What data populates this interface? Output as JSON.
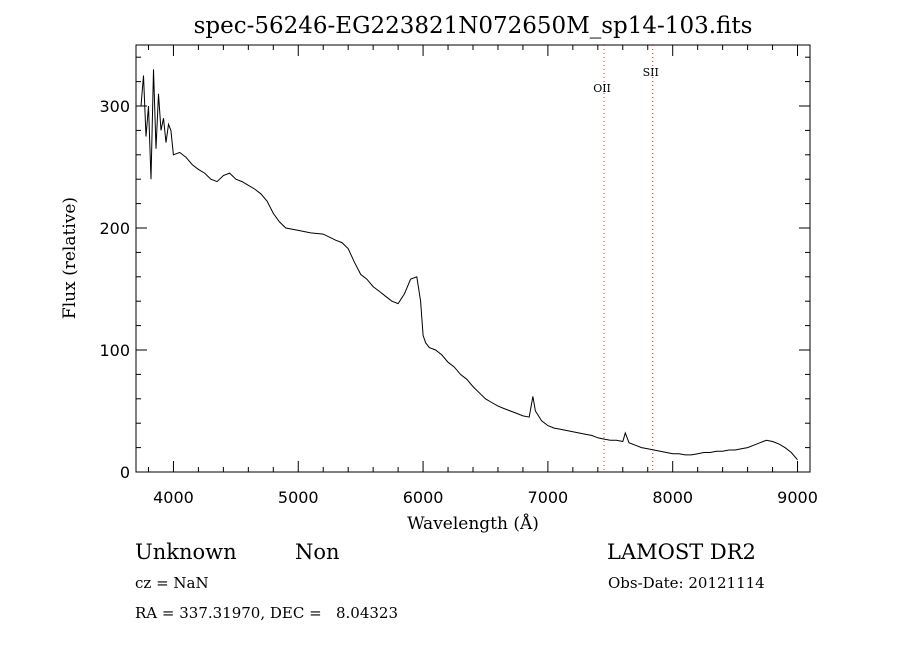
{
  "chart_data": {
    "type": "line",
    "title": "spec-56246-EG223821N072650M_sp14-103.fits",
    "xlabel": "Wavelength (Å)",
    "ylabel": "Flux (relative)",
    "xlim": [
      3700,
      9100
    ],
    "ylim": [
      0,
      350
    ],
    "xticks": [
      4000,
      5000,
      6000,
      7000,
      8000,
      9000
    ],
    "yticks": [
      0,
      100,
      200,
      300
    ],
    "grid": false,
    "series": [
      {
        "color": "#000000",
        "x": [
          3740,
          3760,
          3780,
          3800,
          3820,
          3840,
          3860,
          3880,
          3900,
          3920,
          3940,
          3960,
          3980,
          4000,
          4050,
          4100,
          4150,
          4200,
          4250,
          4300,
          4350,
          4400,
          4450,
          4500,
          4550,
          4600,
          4650,
          4700,
          4750,
          4800,
          4850,
          4900,
          5000,
          5100,
          5200,
          5300,
          5350,
          5400,
          5450,
          5500,
          5550,
          5600,
          5650,
          5700,
          5750,
          5800,
          5850,
          5900,
          5950,
          5980,
          6000,
          6020,
          6050,
          6100,
          6150,
          6200,
          6250,
          6300,
          6350,
          6400,
          6450,
          6500,
          6550,
          6600,
          6650,
          6700,
          6750,
          6800,
          6850,
          6880,
          6900,
          6950,
          7000,
          7050,
          7100,
          7150,
          7200,
          7250,
          7300,
          7350,
          7400,
          7450,
          7500,
          7550,
          7600,
          7620,
          7650,
          7700,
          7750,
          7800,
          7850,
          7900,
          7950,
          8000,
          8050,
          8100,
          8150,
          8200,
          8250,
          8300,
          8350,
          8400,
          8450,
          8500,
          8550,
          8600,
          8650,
          8700,
          8750,
          8800,
          8850,
          8900,
          8950,
          9000
        ],
        "y": [
          300,
          325,
          275,
          300,
          240,
          330,
          265,
          310,
          280,
          290,
          270,
          285,
          280,
          260,
          262,
          258,
          252,
          248,
          245,
          240,
          238,
          243,
          245,
          240,
          238,
          235,
          232,
          228,
          222,
          212,
          205,
          200,
          198,
          196,
          195,
          190,
          188,
          183,
          172,
          162,
          158,
          152,
          148,
          144,
          140,
          138,
          146,
          158,
          160,
          140,
          112,
          106,
          102,
          100,
          96,
          90,
          86,
          80,
          76,
          70,
          65,
          60,
          57,
          54,
          52,
          50,
          48,
          46,
          45,
          62,
          50,
          42,
          38,
          36,
          35,
          34,
          33,
          32,
          31,
          30,
          28,
          27,
          26,
          26,
          25,
          32,
          24,
          22,
          20,
          19,
          18,
          17,
          16,
          15,
          15,
          14,
          14,
          15,
          16,
          16,
          17,
          17,
          18,
          18,
          19,
          20,
          22,
          24,
          26,
          25,
          23,
          20,
          16,
          10
        ]
      }
    ],
    "annotations": [
      {
        "text": "OII",
        "x": 7450
      },
      {
        "text": "SII",
        "x": 7840
      }
    ],
    "annotation_color": "#cc2222"
  },
  "footer": {
    "class_label": "Unknown",
    "subclass_label": "Non",
    "survey": "LAMOST DR2",
    "cz": "cz = NaN",
    "obs_date": "Obs-Date: 20121114",
    "coords": "RA = 337.31970, DEC =   8.04323"
  }
}
